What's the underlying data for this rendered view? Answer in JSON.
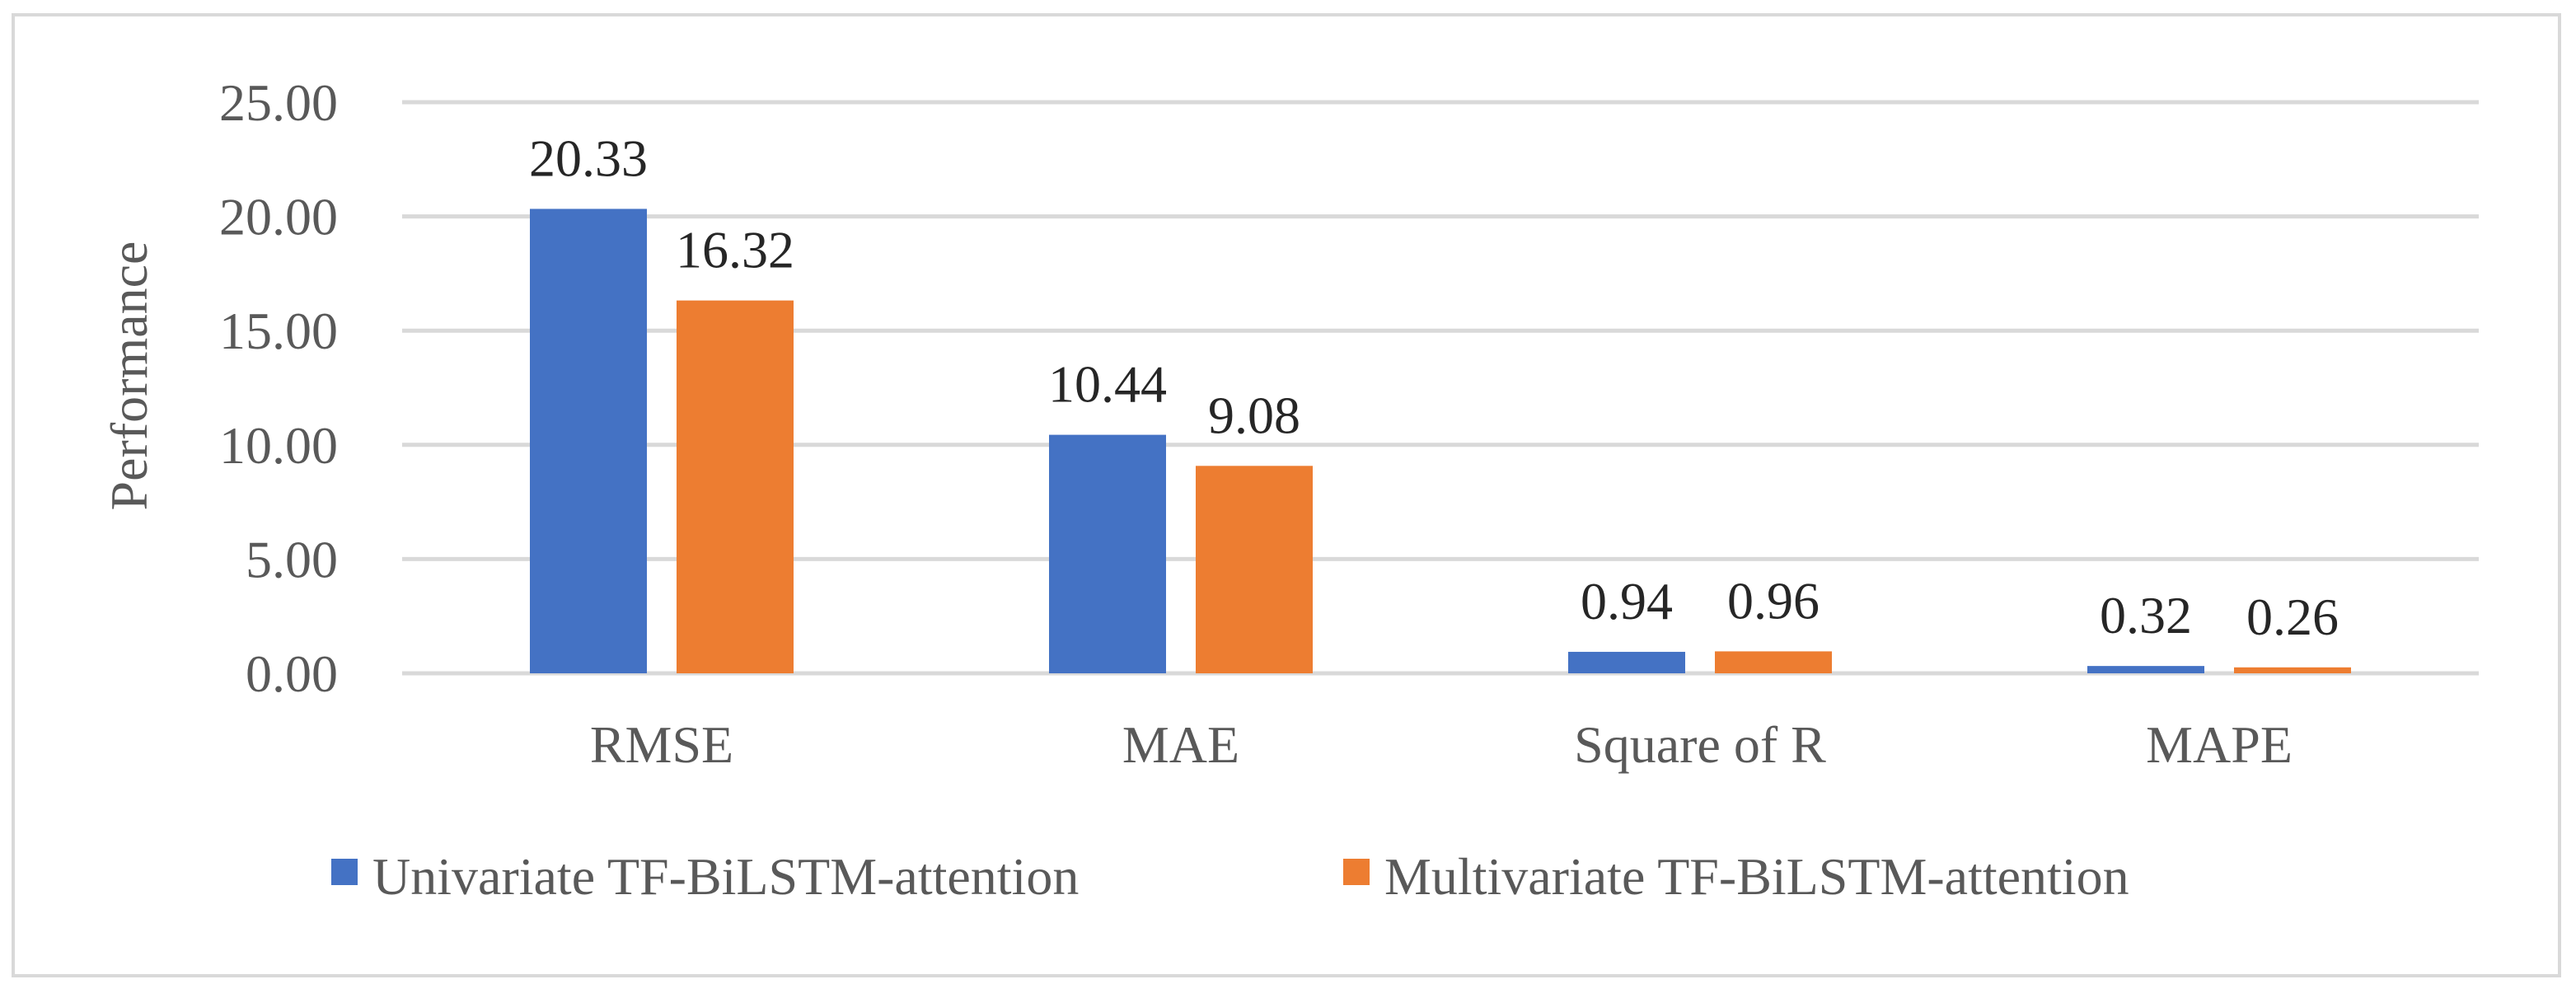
{
  "chart_data": {
    "type": "bar",
    "categories": [
      "RMSE",
      "MAE",
      "Square of R",
      "MAPE"
    ],
    "series": [
      {
        "name": "Univariate TF-BiLSTM-attention",
        "values": [
          20.33,
          10.44,
          0.94,
          0.32
        ],
        "color": "#4472c4"
      },
      {
        "name": "Multivariate TF-BiLSTM-attention",
        "values": [
          16.32,
          9.08,
          0.96,
          0.26
        ],
        "color": "#ed7d31"
      }
    ],
    "data_labels": [
      [
        "20.33",
        "10.44",
        "0.94",
        "0.32"
      ],
      [
        "16.32",
        "9.08",
        "0.96",
        "0.26"
      ]
    ],
    "ylabel": "Performance",
    "xlabel": "",
    "ylim": [
      0,
      25
    ],
    "yticks": [
      "0.00",
      "5.00",
      "10.00",
      "15.00",
      "20.00",
      "25.00"
    ],
    "grid": true,
    "legend_position": "bottom",
    "colors": {
      "gridline": "#d9d9d9",
      "text": "#595959",
      "frame": "#d9d9d9"
    }
  }
}
